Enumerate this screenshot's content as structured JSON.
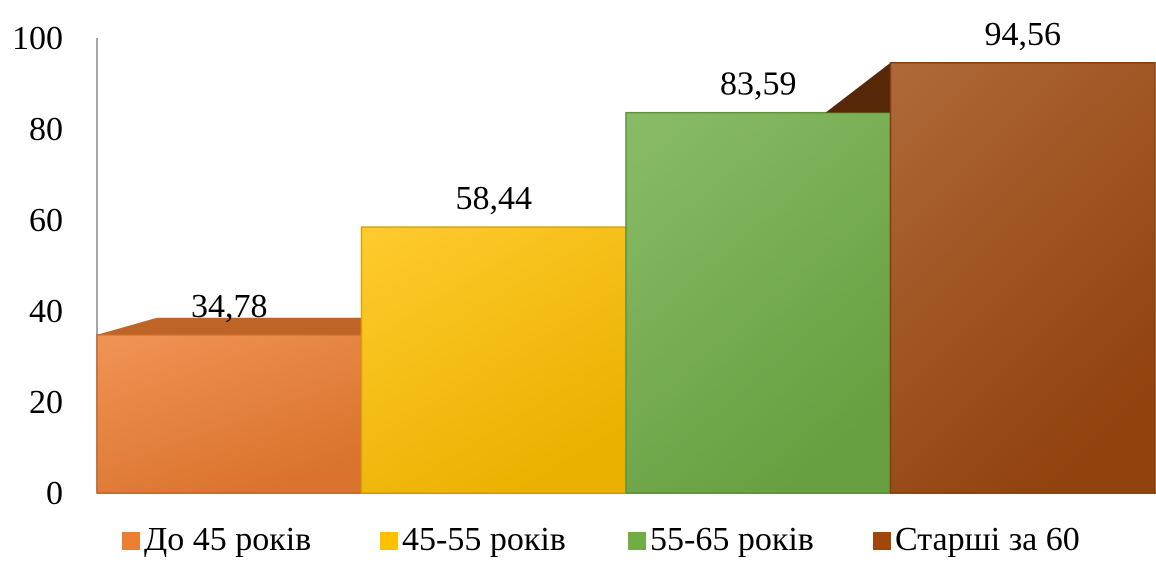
{
  "chart_data": {
    "type": "bar",
    "title": "",
    "xlabel": "",
    "ylabel": "",
    "ylim": [
      0,
      100
    ],
    "yticks": [
      0,
      20,
      40,
      60,
      80,
      100
    ],
    "grid": false,
    "legend_position": "bottom",
    "categories": [
      "До 45 років",
      "45-55 років",
      "55-65 років",
      "Старші за 60"
    ],
    "values": [
      34.78,
      58.44,
      83.59,
      94.56
    ],
    "value_labels": [
      "34,78",
      "58,44",
      "83,59",
      "94,56"
    ],
    "colors": [
      "#ED7D31",
      "#FFC000",
      "#70AD47",
      "#9E480E"
    ]
  }
}
